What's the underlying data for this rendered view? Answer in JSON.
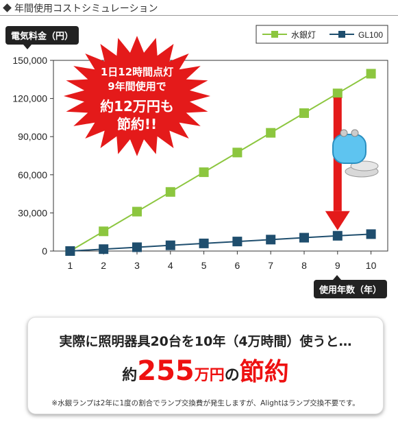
{
  "header": {
    "title": "年間使用コストシミュレーション"
  },
  "chart_data": {
    "type": "line",
    "ylabel": "電気料金（円）",
    "xlabel": "使用年数（年）",
    "x": [
      1,
      2,
      3,
      4,
      5,
      6,
      7,
      8,
      9,
      10
    ],
    "ylim": [
      0,
      150000
    ],
    "yticks": [
      0,
      30000,
      60000,
      90000,
      120000,
      150000
    ],
    "ytick_labels": [
      "0",
      "30,000",
      "60,000",
      "90,000",
      "120,000",
      "150,000"
    ],
    "legend_position": "top-right",
    "grid": false,
    "series": [
      {
        "name": "水銀灯",
        "color": "#8cc63f",
        "marker": "square",
        "values": [
          0,
          15500,
          31000,
          46500,
          62000,
          77500,
          93000,
          108500,
          124000,
          139500
        ]
      },
      {
        "name": "GL100",
        "color": "#1f4e6e",
        "marker": "square",
        "values": [
          0,
          1500,
          3000,
          4500,
          6000,
          7500,
          9000,
          10500,
          12000,
          13300
        ]
      }
    ],
    "annotation_burst": {
      "lines": [
        "1日12時間点灯",
        "9年間使用で",
        "約12万円も",
        "節約!!"
      ],
      "color": "#e41a1a"
    }
  },
  "summary": {
    "line1": "実際に照明器具20台を10年（4万時間）使うと…",
    "prefix": "約",
    "amount": "255",
    "unit": "万円",
    "particle": "の",
    "saving": "節約",
    "note": "※水銀ランプは2年に1度の割合でランプ交換費が発生しますが、Alightはランプ交換不要です。"
  }
}
